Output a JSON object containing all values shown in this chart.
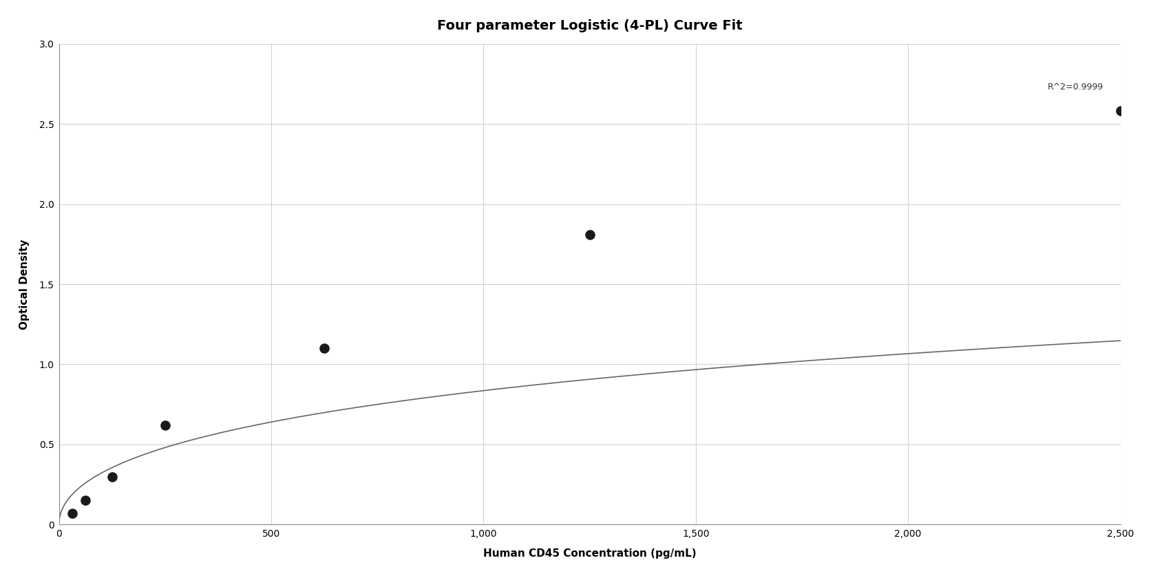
{
  "title": "Four parameter Logistic (4-PL) Curve Fit",
  "xlabel": "Human CD45 Concentration (pg/mL)",
  "ylabel": "Optical Density",
  "data_x": [
    31.25,
    62.5,
    125,
    250,
    625,
    1250,
    2500
  ],
  "data_y": [
    0.07,
    0.15,
    0.3,
    0.62,
    1.1,
    1.81,
    2.58
  ],
  "r2_text": "R^2=0.9999",
  "r2_x": 2460,
  "r2_y": 2.7,
  "xlim": [
    0,
    2500
  ],
  "ylim": [
    0,
    3.0
  ],
  "xticks": [
    0,
    500,
    1000,
    1500,
    2000,
    2500
  ],
  "yticks": [
    0,
    0.5,
    1.0,
    1.5,
    2.0,
    2.5,
    3.0
  ],
  "background_color": "#ffffff",
  "grid_color": "#c8d4e0",
  "line_color": "#666666",
  "dot_color": "#1a1a1a",
  "dot_size": 90,
  "title_fontsize": 14,
  "label_fontsize": 11,
  "tick_fontsize": 10,
  "annotation_fontsize": 9
}
